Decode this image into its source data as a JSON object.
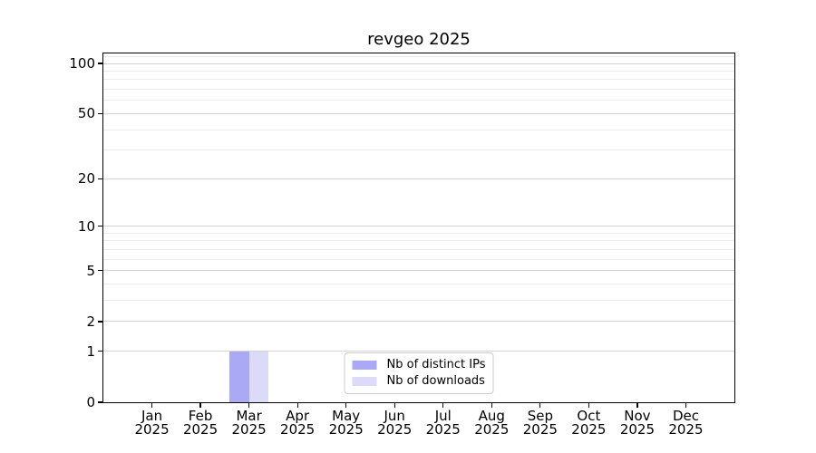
{
  "chart_data": {
    "type": "bar",
    "title": "revgeo 2025",
    "categories": [
      "Jan",
      "Feb",
      "Mar",
      "Apr",
      "May",
      "Jun",
      "Jul",
      "Aug",
      "Sep",
      "Oct",
      "Nov",
      "Dec"
    ],
    "x_year_label": "2025",
    "series": [
      {
        "name": "Nb of distinct IPs",
        "color": "#a9a9f6",
        "values": [
          0,
          0,
          1,
          0,
          0,
          0,
          0,
          0,
          0,
          0,
          0,
          0
        ]
      },
      {
        "name": "Nb of downloads",
        "color": "#dbdbf9",
        "values": [
          0,
          0,
          1,
          0,
          0,
          0,
          0,
          0,
          0,
          0,
          0,
          0
        ]
      }
    ],
    "yscale": "log1p",
    "ylim": [
      0,
      114.7
    ],
    "y_major_ticks": [
      0,
      1,
      2,
      5,
      10,
      20,
      50,
      100
    ],
    "y_minor_ticks": [
      3,
      4,
      6,
      7,
      8,
      9,
      30,
      40,
      60,
      70,
      80,
      90,
      110
    ],
    "grid": "horizontal",
    "legend_position": "lower-center-inside",
    "colors": {
      "major_grid": "#d3d3d3",
      "minor_grid": "#eaeaea",
      "axis": "#000000",
      "legend_border": "#cccccc",
      "background": "#ffffff"
    }
  }
}
